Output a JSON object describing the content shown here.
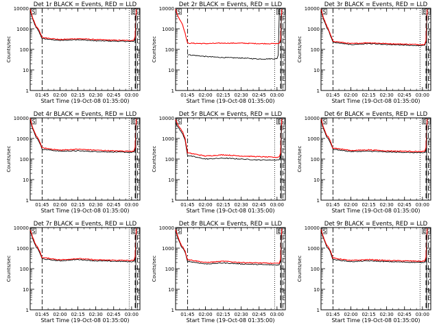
{
  "common": {
    "xlabel": "Start Time (19-Oct-08 01:35:00)",
    "ylabel": "Counts/sec",
    "x_tick_labels": [
      "01:45",
      "02:00",
      "02:15",
      "02:30",
      "02:45",
      "03:00"
    ],
    "y_tick_labels": [
      "1",
      "10",
      "100",
      "1000",
      "10000"
    ],
    "x_range_minutes_after_start": [
      0,
      92
    ],
    "x_range_labels": [
      "01:35",
      "03:07"
    ],
    "yscale": "log",
    "ylim": [
      1,
      10000
    ],
    "colors": {
      "events": "#000000",
      "lld": "#ff0000"
    }
  },
  "chart_data": [
    {
      "type": "line",
      "title": "Det 1r BLACK = Events, RED = LLD",
      "markers": {
        "left": "S",
        "right": [
          "E",
          "S"
        ]
      },
      "series": [
        {
          "legend": "BLACK = Events",
          "x": [
            "01:35",
            "01:37",
            "01:40",
            "01:41",
            "01:43",
            "01:45",
            "02:00",
            "02:15",
            "02:30",
            "02:45",
            "03:00",
            "03:02"
          ],
          "values": [
            8000,
            3000,
            1100,
            1000,
            600,
            330,
            270,
            300,
            260,
            250,
            240,
            250
          ]
        },
        {
          "legend": "RED = LLD",
          "x": [
            "01:35",
            "01:37",
            "01:40",
            "01:41",
            "01:43",
            "01:45",
            "02:00",
            "02:15",
            "02:30",
            "02:45",
            "03:00",
            "03:02"
          ],
          "values": [
            9000,
            3500,
            1300,
            1200,
            700,
            380,
            300,
            330,
            300,
            280,
            270,
            280
          ]
        }
      ]
    },
    {
      "type": "line",
      "title": "Det 2r BLACK = Events, RED = LLD",
      "markers": {
        "left": "S",
        "right": [
          "E",
          "S"
        ]
      },
      "series": [
        {
          "legend": "BLACK = Events",
          "x": [
            "01:45",
            "02:00",
            "02:15",
            "02:30",
            "02:45",
            "03:00"
          ],
          "values": [
            55,
            45,
            40,
            38,
            34,
            35
          ]
        },
        {
          "legend": "RED = LLD",
          "x": [
            "01:35",
            "01:37",
            "01:40",
            "01:41",
            "01:43",
            "01:45",
            "02:00",
            "02:15",
            "02:30",
            "02:45",
            "03:00",
            "03:02"
          ],
          "values": [
            9000,
            4000,
            2000,
            1500,
            600,
            200,
            190,
            200,
            200,
            190,
            190,
            200
          ]
        }
      ]
    },
    {
      "type": "line",
      "title": "Det 3r BLACK = Events, RED = LLD",
      "markers": {
        "left": "S",
        "right": [
          "E",
          "S"
        ]
      },
      "series": [
        {
          "legend": "BLACK = Events",
          "x": [
            "01:35",
            "01:37",
            "01:40",
            "01:41",
            "01:43",
            "01:45",
            "02:00",
            "02:15",
            "02:30",
            "02:45",
            "03:00",
            "03:02"
          ],
          "values": [
            8000,
            3000,
            1100,
            900,
            450,
            220,
            170,
            190,
            170,
            160,
            150,
            160
          ]
        },
        {
          "legend": "RED = LLD",
          "x": [
            "01:35",
            "01:37",
            "01:40",
            "01:41",
            "01:43",
            "01:45",
            "02:00",
            "02:15",
            "02:30",
            "02:45",
            "03:00",
            "03:02"
          ],
          "values": [
            9000,
            3500,
            1300,
            1000,
            500,
            250,
            190,
            210,
            190,
            180,
            170,
            180
          ]
        }
      ]
    },
    {
      "type": "line",
      "title": "Det 4r BLACK = Events, RED = LLD",
      "markers": {
        "left": "S",
        "right": [
          "E",
          "S"
        ]
      },
      "series": [
        {
          "legend": "BLACK = Events",
          "x": [
            "01:35",
            "01:37",
            "01:40",
            "01:41",
            "01:43",
            "01:45",
            "02:00",
            "02:15",
            "02:30",
            "02:45",
            "03:00",
            "03:02"
          ],
          "values": [
            8000,
            3000,
            1100,
            1000,
            600,
            300,
            240,
            250,
            230,
            220,
            210,
            220
          ]
        },
        {
          "legend": "RED = LLD",
          "x": [
            "01:35",
            "01:37",
            "01:40",
            "01:41",
            "01:43",
            "01:45",
            "02:00",
            "02:15",
            "02:30",
            "02:45",
            "03:00",
            "03:02"
          ],
          "values": [
            9000,
            3500,
            1300,
            1200,
            700,
            350,
            270,
            300,
            270,
            250,
            240,
            250
          ]
        }
      ]
    },
    {
      "type": "line",
      "title": "Det 5r BLACK = Events, RED = LLD",
      "markers": {
        "left": "S",
        "right": [
          "E",
          "S"
        ]
      },
      "series": [
        {
          "legend": "BLACK = Events",
          "x": [
            "01:35",
            "01:37",
            "01:40",
            "01:41",
            "01:43",
            "01:45",
            "02:00",
            "02:15",
            "02:30",
            "02:45",
            "03:00",
            "03:02"
          ],
          "values": [
            6000,
            3500,
            2000,
            1600,
            800,
            150,
            100,
            110,
            100,
            90,
            90,
            95
          ]
        },
        {
          "legend": "RED = LLD",
          "x": [
            "01:35",
            "01:37",
            "01:40",
            "01:41",
            "01:43",
            "01:45",
            "02:00",
            "02:15",
            "02:30",
            "02:45",
            "03:00",
            "03:02"
          ],
          "values": [
            8000,
            4500,
            2500,
            2000,
            1000,
            200,
            140,
            160,
            140,
            130,
            120,
            130
          ]
        }
      ]
    },
    {
      "type": "line",
      "title": "Det 6r BLACK = Events, RED = LLD",
      "markers": {
        "left": "S",
        "right": [
          "E",
          "S"
        ]
      },
      "series": [
        {
          "legend": "BLACK = Events",
          "x": [
            "01:35",
            "01:37",
            "01:40",
            "01:41",
            "01:43",
            "01:45",
            "02:00",
            "02:15",
            "02:30",
            "02:45",
            "03:00",
            "03:02"
          ],
          "values": [
            8000,
            3000,
            1100,
            1000,
            600,
            300,
            230,
            240,
            220,
            210,
            200,
            210
          ]
        },
        {
          "legend": "RED = LLD",
          "x": [
            "01:35",
            "01:37",
            "01:40",
            "01:41",
            "01:43",
            "01:45",
            "02:00",
            "02:15",
            "02:30",
            "02:45",
            "03:00",
            "03:02"
          ],
          "values": [
            9000,
            3500,
            1300,
            1200,
            700,
            350,
            260,
            280,
            250,
            240,
            230,
            240
          ]
        }
      ]
    },
    {
      "type": "line",
      "title": "Det 7r BLACK = Events, RED = LLD",
      "markers": {
        "left": "S",
        "right": [
          "E",
          "S"
        ]
      },
      "series": [
        {
          "legend": "BLACK = Events",
          "x": [
            "01:35",
            "01:37",
            "01:40",
            "01:41",
            "01:43",
            "01:45",
            "02:00",
            "02:15",
            "02:30",
            "02:45",
            "03:00",
            "03:02"
          ],
          "values": [
            7000,
            3000,
            1100,
            1000,
            600,
            300,
            240,
            280,
            240,
            230,
            220,
            230
          ]
        },
        {
          "legend": "RED = LLD",
          "x": [
            "01:35",
            "01:37",
            "01:40",
            "01:41",
            "01:43",
            "01:45",
            "02:00",
            "02:15",
            "02:30",
            "02:45",
            "03:00",
            "03:02"
          ],
          "values": [
            8000,
            3500,
            1300,
            1200,
            700,
            350,
            270,
            310,
            270,
            260,
            250,
            260
          ]
        }
      ]
    },
    {
      "type": "line",
      "title": "Det 8r BLACK = Events, RED = LLD",
      "markers": {
        "left": "S",
        "right": [
          "E",
          "S"
        ]
      },
      "series": [
        {
          "legend": "BLACK = Events",
          "x": [
            "01:35",
            "01:37",
            "01:40",
            "01:41",
            "01:43",
            "01:45",
            "02:00",
            "02:15",
            "02:30",
            "02:45",
            "03:00",
            "03:02"
          ],
          "values": [
            7000,
            3000,
            1100,
            1000,
            600,
            230,
            170,
            190,
            170,
            160,
            150,
            160
          ]
        },
        {
          "legend": "RED = LLD",
          "x": [
            "01:35",
            "01:37",
            "01:40",
            "01:41",
            "01:43",
            "01:45",
            "02:00",
            "02:15",
            "02:30",
            "02:45",
            "03:00",
            "03:02"
          ],
          "values": [
            8000,
            3500,
            1300,
            1200,
            700,
            280,
            200,
            230,
            200,
            190,
            180,
            190
          ]
        }
      ]
    },
    {
      "type": "line",
      "title": "Det 9r BLACK = Events, RED = LLD",
      "markers": {
        "left": "S",
        "right": [
          "E",
          "S"
        ]
      },
      "series": [
        {
          "legend": "BLACK = Events",
          "x": [
            "01:35",
            "01:37",
            "01:40",
            "01:41",
            "01:43",
            "01:45",
            "02:00",
            "02:15",
            "02:30",
            "02:45",
            "03:00",
            "03:02"
          ],
          "values": [
            7000,
            3000,
            1100,
            1000,
            600,
            280,
            220,
            240,
            220,
            210,
            200,
            210
          ]
        },
        {
          "legend": "RED = LLD",
          "x": [
            "01:35",
            "01:37",
            "01:40",
            "01:41",
            "01:43",
            "01:45",
            "02:00",
            "02:15",
            "02:30",
            "02:45",
            "03:00",
            "03:02"
          ],
          "values": [
            8000,
            3500,
            1300,
            1200,
            700,
            330,
            250,
            280,
            250,
            240,
            230,
            240
          ]
        }
      ]
    }
  ]
}
